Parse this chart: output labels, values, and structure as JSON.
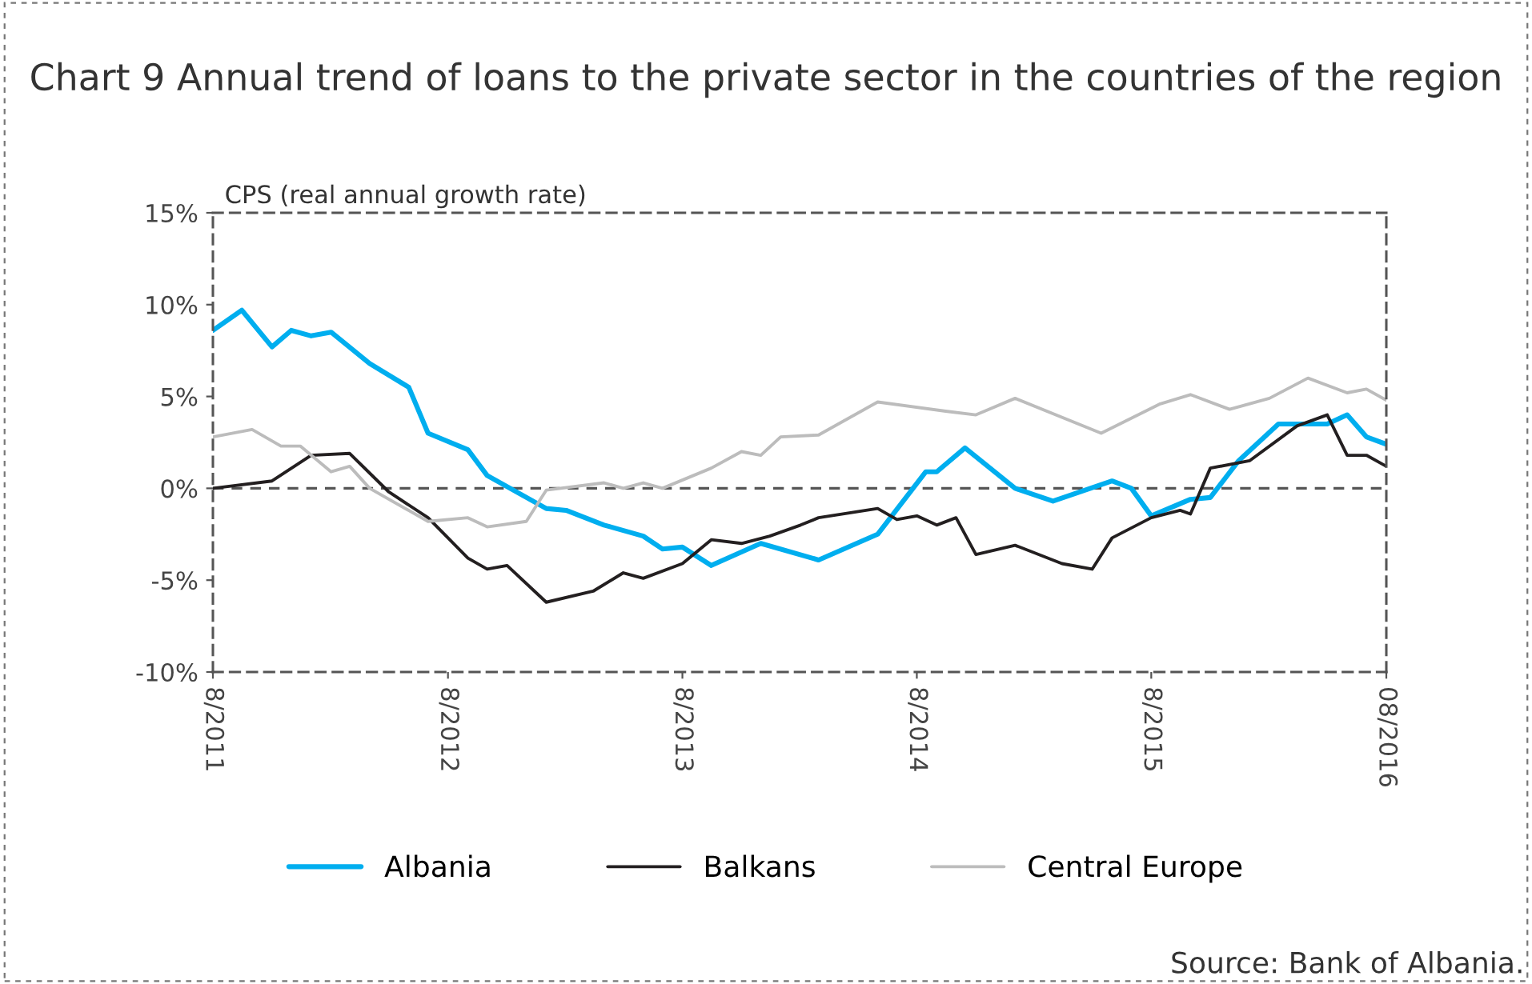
{
  "chart_data": {
    "type": "line",
    "title": "Chart 9 Annual trend of loans to the private sector in the countries of the region",
    "ylabel": "CPS (real annual growth rate)",
    "xlim": [
      "2011-08",
      "2016-08"
    ],
    "xticks": [
      {
        "value": "2011-08",
        "label": "8/2011"
      },
      {
        "value": "2012-08",
        "label": "8/2012"
      },
      {
        "value": "2013-08",
        "label": "8/2013"
      },
      {
        "value": "2014-08",
        "label": "8/2014"
      },
      {
        "value": "2015-08",
        "label": "8/2015"
      },
      {
        "value": "2016-08",
        "label": "08/2016"
      }
    ],
    "ylim": [
      -10,
      15
    ],
    "yticks": [
      {
        "value": -10,
        "label": "-10%"
      },
      {
        "value": -5,
        "label": "-5%"
      },
      {
        "value": 0,
        "label": "0%"
      },
      {
        "value": 5,
        "label": "5%"
      },
      {
        "value": 10,
        "label": "10%"
      },
      {
        "value": 15,
        "label": "15%"
      }
    ],
    "series": [
      {
        "name": "Albania",
        "color": "#00aeef",
        "x": [
          "2011-08",
          "2011-09-15",
          "2011-11",
          "2011-12",
          "2012-01",
          "2012-02",
          "2012-04",
          "2012-06",
          "2012-07",
          "2012-09",
          "2012-10",
          "2013-01",
          "2013-02",
          "2013-04",
          "2013-06",
          "2013-07",
          "2013-08",
          "2013-09-15",
          "2013-12",
          "2014-03",
          "2014-06",
          "2014-08-15",
          "2014-09",
          "2014-10-15",
          "2015-01",
          "2015-03",
          "2015-06",
          "2015-07",
          "2015-08",
          "2015-10",
          "2015-11",
          "2015-12-15",
          "2016-02-15",
          "2016-05",
          "2016-06",
          "2016-07",
          "2016-08"
        ],
        "values": [
          8.6,
          9.7,
          7.7,
          8.6,
          8.3,
          8.5,
          6.8,
          5.5,
          3.0,
          2.1,
          0.7,
          -1.1,
          -1.2,
          -2.0,
          -2.6,
          -3.3,
          -3.2,
          -4.2,
          -3.0,
          -3.9,
          -2.5,
          0.9,
          0.9,
          2.2,
          0.0,
          -0.7,
          0.4,
          0.0,
          -1.5,
          -0.6,
          -0.5,
          1.5,
          3.5,
          3.5,
          4.0,
          2.8,
          2.4
        ]
      },
      {
        "name": "Balkans",
        "color": "#231f20",
        "x": [
          "2011-08",
          "2011-11",
          "2012-01",
          "2012-03",
          "2012-05",
          "2012-07",
          "2012-09",
          "2012-10",
          "2012-11",
          "2013-01",
          "2013-03-15",
          "2013-05",
          "2013-06",
          "2013-08",
          "2013-09-15",
          "2013-11",
          "2013-12-15",
          "2014-02",
          "2014-03",
          "2014-06",
          "2014-07",
          "2014-08",
          "2014-09",
          "2014-10",
          "2014-11",
          "2015-01",
          "2015-03-15",
          "2015-05",
          "2015-06",
          "2015-08",
          "2015-09-15",
          "2015-10",
          "2015-11",
          "2016-01",
          "2016-03-15",
          "2016-05",
          "2016-06",
          "2016-07",
          "2016-08"
        ],
        "values": [
          0.0,
          0.4,
          1.8,
          1.9,
          -0.2,
          -1.6,
          -3.8,
          -4.4,
          -4.2,
          -6.2,
          -5.6,
          -4.6,
          -4.9,
          -4.1,
          -2.8,
          -3.0,
          -2.6,
          -2.0,
          -1.6,
          -1.1,
          -1.7,
          -1.5,
          -2.0,
          -1.6,
          -3.6,
          -3.1,
          -4.1,
          -4.4,
          -2.7,
          -1.6,
          -1.2,
          -1.4,
          1.1,
          1.5,
          3.4,
          4.0,
          1.8,
          1.8,
          1.2
        ]
      },
      {
        "name": "Central Europe",
        "color": "#bcbcbc",
        "x": [
          "2011-08",
          "2011-10",
          "2011-11-15",
          "2011-12-15",
          "2012-02",
          "2012-03",
          "2012-04",
          "2012-07",
          "2012-09",
          "2012-10",
          "2012-12",
          "2013-01",
          "2013-04",
          "2013-05",
          "2013-06",
          "2013-07",
          "2013-09-15",
          "2013-11",
          "2013-12",
          "2014-01",
          "2014-03",
          "2014-06",
          "2014-09-15",
          "2014-11",
          "2015-01",
          "2015-05-15",
          "2015-08-15",
          "2015-10",
          "2015-12",
          "2016-02",
          "2016-04",
          "2016-06",
          "2016-07",
          "2016-08"
        ],
        "values": [
          2.8,
          3.2,
          2.3,
          2.3,
          0.9,
          1.2,
          0.0,
          -1.8,
          -1.6,
          -2.1,
          -1.8,
          -0.1,
          0.3,
          0.0,
          0.3,
          0.0,
          1.1,
          2.0,
          1.8,
          2.8,
          2.9,
          4.7,
          4.2,
          4.0,
          4.9,
          3.0,
          4.6,
          5.1,
          4.3,
          4.9,
          6.0,
          5.2,
          5.4,
          4.8
        ]
      }
    ],
    "ref_lines": [
      {
        "axis": "y",
        "value": 0,
        "color": "#555555",
        "line_style": "dashed"
      }
    ],
    "legend": "bottom",
    "annotations": [
      "Source: Bank of Albania."
    ]
  }
}
